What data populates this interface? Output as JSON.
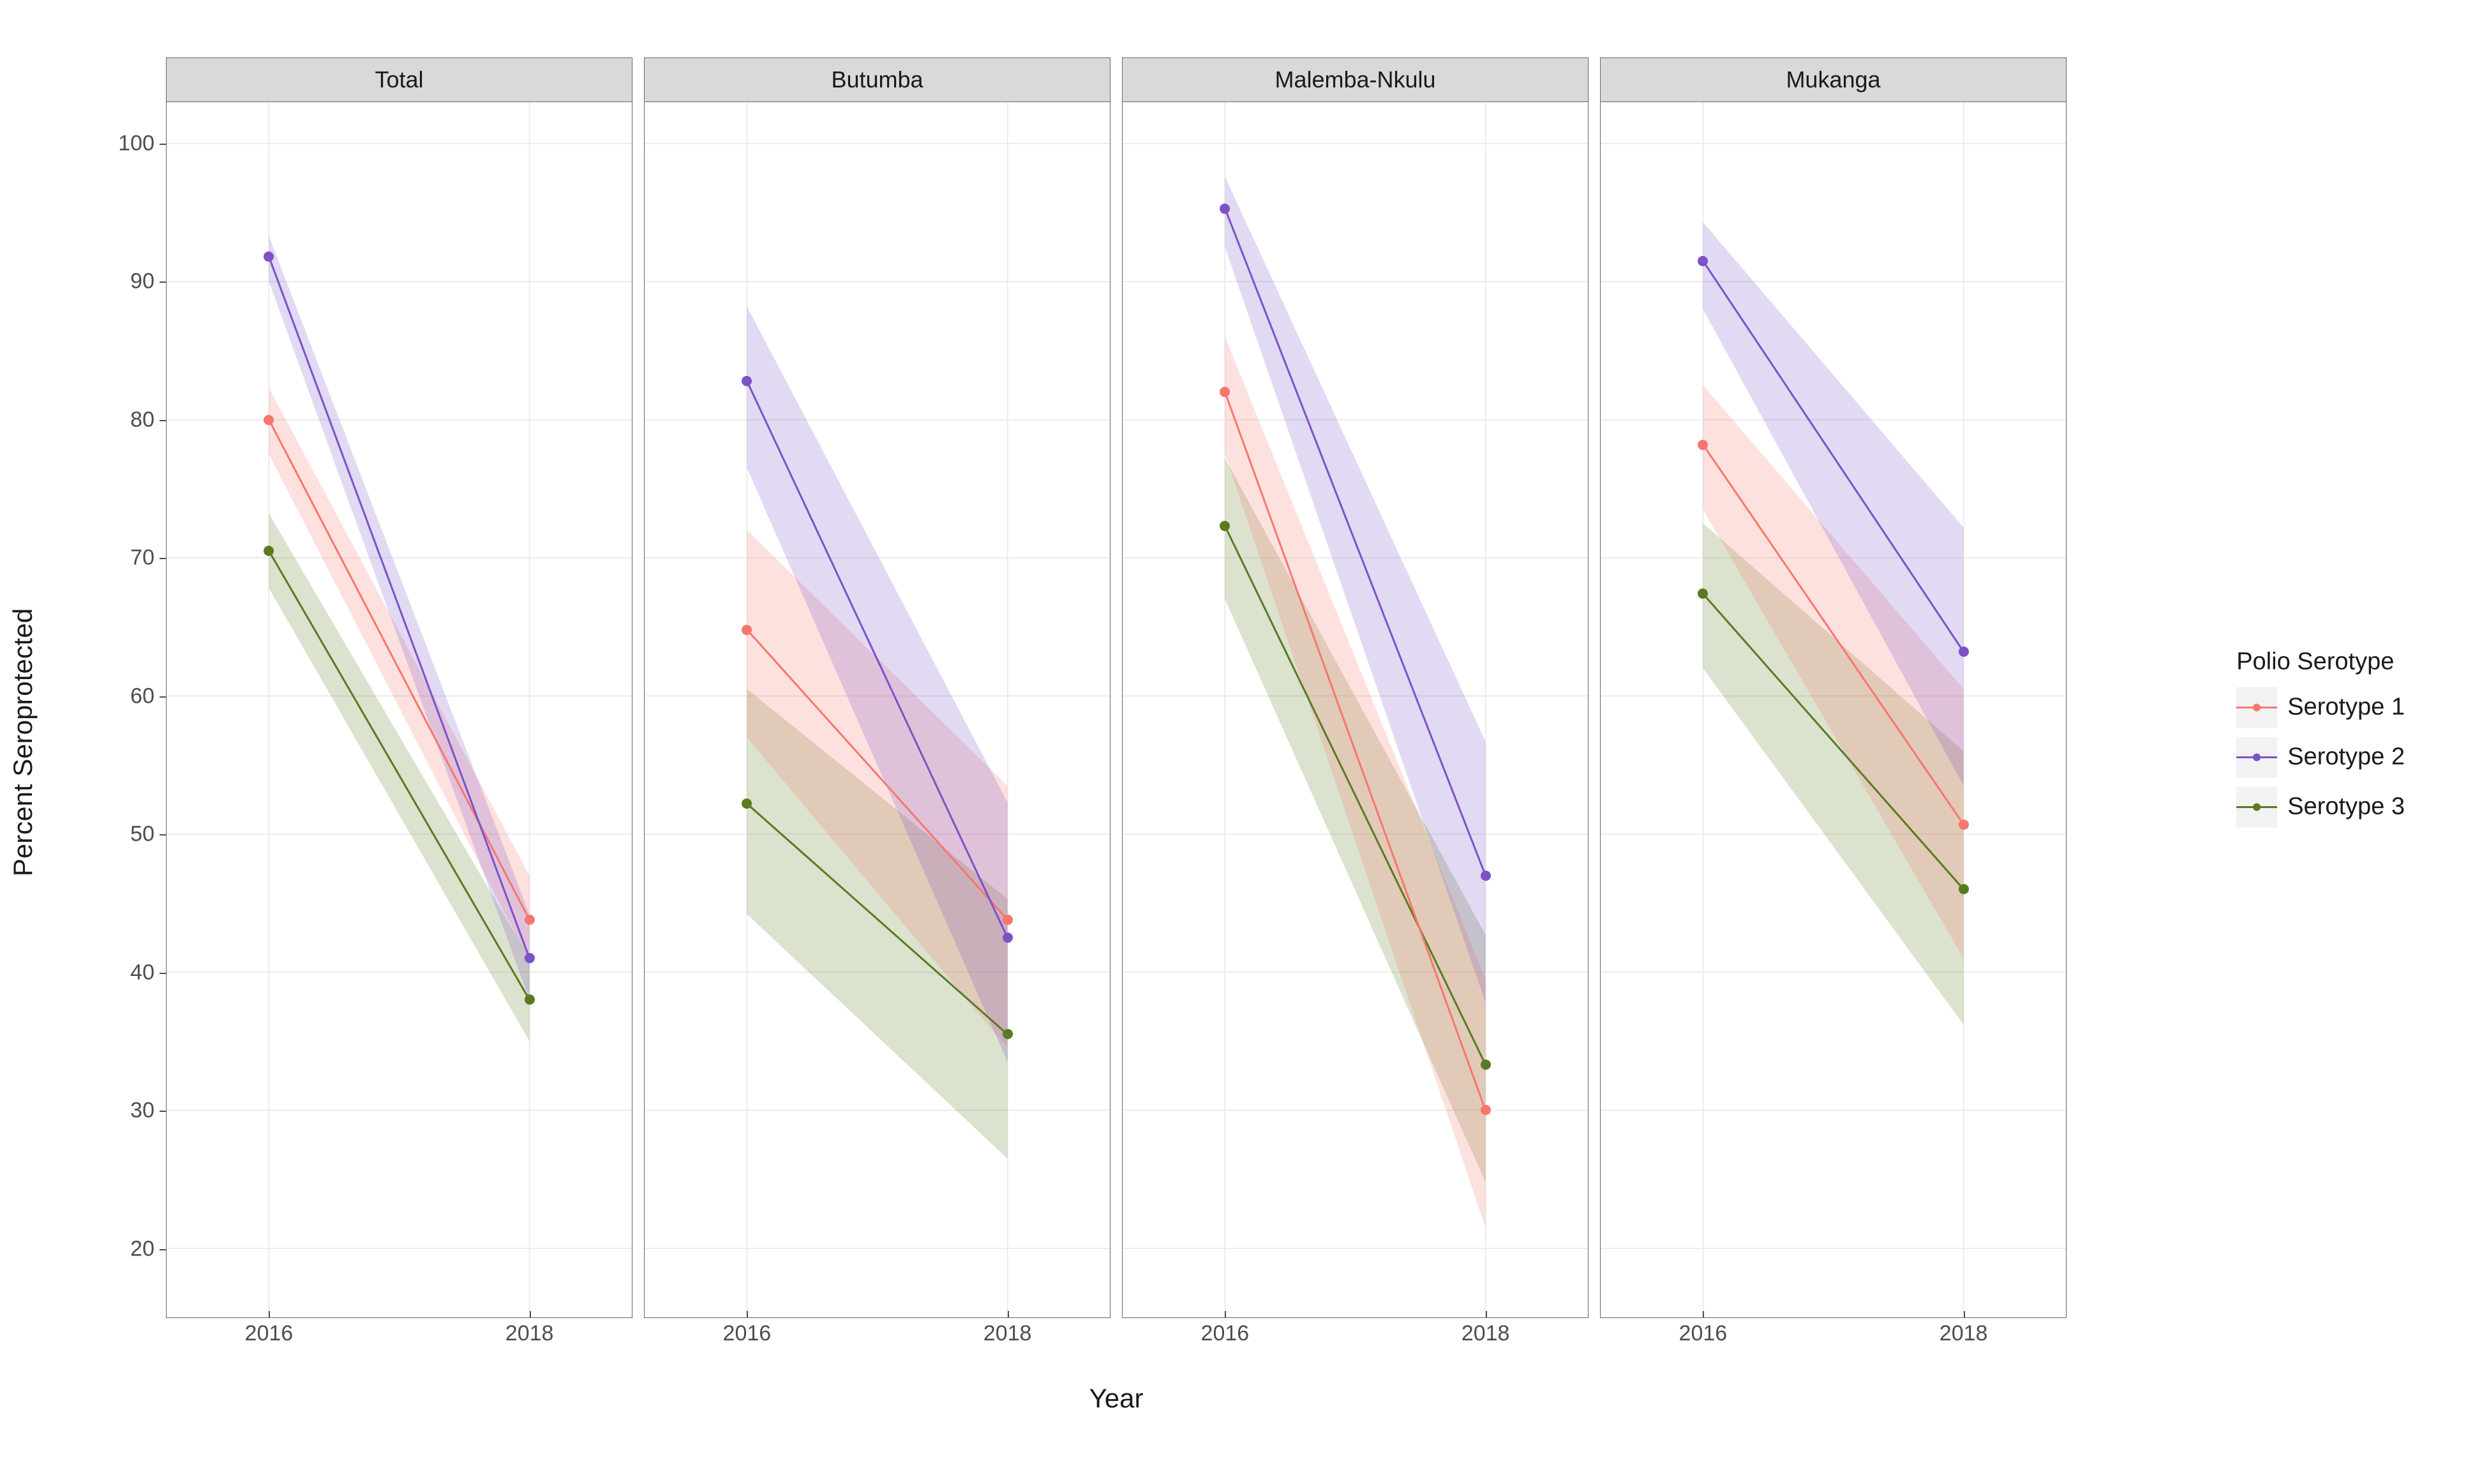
{
  "chart": {
    "type": "faceted-line-with-ribbon",
    "background_color": "#ffffff",
    "panel_border_color": "#676767",
    "strip_background": "#d9d9d9",
    "strip_text_color": "#1a1a1a",
    "strip_fontsize": 36,
    "axis_text_color": "#4d4d4d",
    "axis_text_fontsize": 34,
    "axis_title_fontsize": 42,
    "axis_title_color": "#1a1a1a",
    "legend_fontsize": 38,
    "gridline_color": "#ebebeb",
    "gridline_width": 2,
    "line_width": 3,
    "marker_radius": 8,
    "ribbon_opacity": 0.22,
    "y_axis": {
      "title": "Percent Seroprotected",
      "min": 15,
      "max": 103,
      "ticks": [
        20,
        30,
        40,
        50,
        60,
        70,
        80,
        90,
        100
      ]
    },
    "x_axis": {
      "title": "Year",
      "categories": [
        "2016",
        "2018"
      ],
      "positions": [
        0.22,
        0.78
      ]
    },
    "series_meta": {
      "s1": {
        "label": "Serotype 1",
        "color": "#f8766d"
      },
      "s2": {
        "label": "Serotype 2",
        "color": "#7c52c7"
      },
      "s3": {
        "label": "Serotype 3",
        "color": "#5a7a22"
      }
    },
    "legend": {
      "title": "Polio Serotype",
      "order": [
        "s1",
        "s2",
        "s3"
      ]
    },
    "facets": [
      {
        "label": "Total",
        "series": {
          "s1": {
            "y": [
              80.0,
              43.8
            ],
            "lo": [
              77.5,
              40.8
            ],
            "hi": [
              82.3,
              47.0
            ]
          },
          "s2": {
            "y": [
              91.8,
              41.0
            ],
            "lo": [
              90.0,
              38.0
            ],
            "hi": [
              93.3,
              44.2
            ]
          },
          "s3": {
            "y": [
              70.5,
              38.0
            ],
            "lo": [
              67.8,
              35.0
            ],
            "hi": [
              73.2,
              41.0
            ]
          }
        }
      },
      {
        "label": "Butumba",
        "series": {
          "s1": {
            "y": [
              64.8,
              43.8
            ],
            "lo": [
              57.0,
              34.5
            ],
            "hi": [
              72.0,
              53.5
            ]
          },
          "s2": {
            "y": [
              82.8,
              42.5
            ],
            "lo": [
              76.5,
              33.5
            ],
            "hi": [
              88.2,
              52.3
            ]
          },
          "s3": {
            "y": [
              52.2,
              35.5
            ],
            "lo": [
              44.2,
              26.5
            ],
            "hi": [
              60.5,
              45.3
            ]
          }
        }
      },
      {
        "label": "Malemba-Nkulu",
        "series": {
          "s1": {
            "y": [
              82.0,
              30.0
            ],
            "lo": [
              77.5,
              21.5
            ],
            "hi": [
              86.0,
              39.5
            ]
          },
          "s2": {
            "y": [
              95.3,
              47.0
            ],
            "lo": [
              92.5,
              37.8
            ],
            "hi": [
              97.6,
              56.7
            ]
          },
          "s3": {
            "y": [
              72.3,
              33.3
            ],
            "lo": [
              67.0,
              24.8
            ],
            "hi": [
              77.2,
              42.7
            ]
          }
        }
      },
      {
        "label": "Mukanga",
        "series": {
          "s1": {
            "y": [
              78.2,
              50.7
            ],
            "lo": [
              73.5,
              41.0
            ],
            "hi": [
              82.5,
              60.5
            ]
          },
          "s2": {
            "y": [
              91.5,
              63.2
            ],
            "lo": [
              88.0,
              53.5
            ],
            "hi": [
              94.3,
              72.2
            ]
          },
          "s3": {
            "y": [
              67.4,
              46.0
            ],
            "lo": [
              62.0,
              36.2
            ],
            "hi": [
              72.5,
              56.0
            ]
          }
        }
      }
    ]
  }
}
